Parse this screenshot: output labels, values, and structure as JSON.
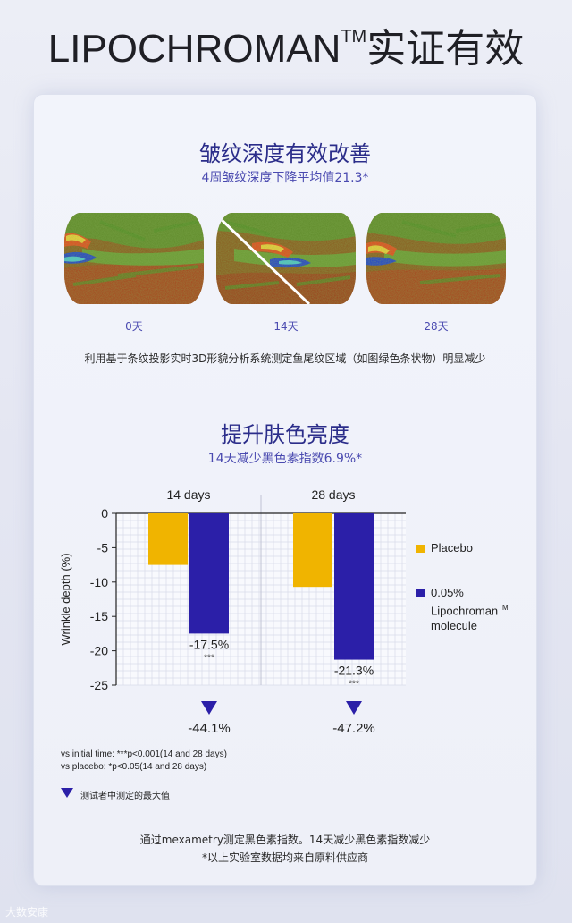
{
  "header": {
    "title": "LIPOCHROMAN",
    "tm": "TM",
    "title_cn": "实证有效"
  },
  "wrinkle": {
    "title": "皱纹深度有效改善",
    "subtitle": "4周皱纹深度下降平均值21.3*",
    "days": [
      "0天",
      "14天",
      "28天"
    ],
    "caption": "利用基于条纹投影实时3D形貌分析系统测定鱼尾纹区域（如图绿色条状物）明显减少"
  },
  "brightness": {
    "title": "提升肤色亮度",
    "subtitle": "14天减少黑色素指数6.9%*"
  },
  "chart_data": {
    "type": "bar",
    "categories": [
      "14 days",
      "28 days"
    ],
    "series": [
      {
        "name": "Placebo",
        "values": [
          -7.5,
          -10.7
        ],
        "color": "#f0b400"
      },
      {
        "name": "0.05% Lipochroman™ molecule",
        "values": [
          -17.5,
          -21.3
        ],
        "color": "#2b1fa8"
      }
    ],
    "value_labels": [
      "-17.5%",
      "-21.3%"
    ],
    "significance": [
      "***",
      "***"
    ],
    "max_values": [
      "-44.1%",
      "-47.2%"
    ],
    "ylabel": "Wrinkle depth (%)",
    "ylim": [
      -25,
      0
    ],
    "yticks": [
      "0",
      "-5",
      "-10",
      "-15",
      "-20",
      "-25"
    ],
    "grid": true,
    "legend_position": "right",
    "legend": {
      "placebo": "Placebo",
      "active_line1": "0.05%",
      "active_line2": "Lipochroman",
      "active_tm": "TM",
      "active_line3": "molecule"
    }
  },
  "notes": {
    "line1": "vs initial time: ***p<0.001(14 and 28 days)",
    "line2": "vs placebo: *p<0.05(14 and 28 days)",
    "marker_legend": "测试者中测定的最大值"
  },
  "footer": {
    "line1": "通过mexametry测定黑色素指数。14天减少黑色素指数减少",
    "line2": "*以上实验室数据均来自原料供应商"
  },
  "watermark": "大数安康",
  "colors": {
    "accent": "#2b2d8a",
    "placebo": "#f0b400",
    "active": "#2b1fa8"
  }
}
